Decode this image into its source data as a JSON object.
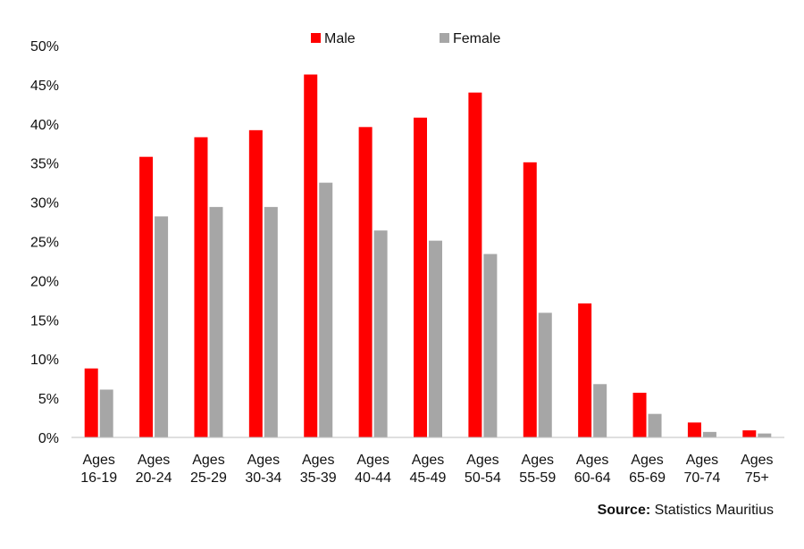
{
  "chart_data": {
    "type": "bar",
    "categories": [
      [
        "Ages",
        "16-19"
      ],
      [
        "Ages",
        "20-24"
      ],
      [
        "Ages",
        "25-29"
      ],
      [
        "Ages",
        "30-34"
      ],
      [
        "Ages",
        "35-39"
      ],
      [
        "Ages",
        "40-44"
      ],
      [
        "Ages",
        "45-49"
      ],
      [
        "Ages",
        "50-54"
      ],
      [
        "Ages",
        "55-59"
      ],
      [
        "Ages",
        "60-64"
      ],
      [
        "Ages",
        "65-69"
      ],
      [
        "Ages",
        "70-74"
      ],
      [
        "Ages",
        "75+"
      ]
    ],
    "series": [
      {
        "name": "Male",
        "color": "#ff0000",
        "values": [
          8.8,
          35.8,
          38.3,
          39.2,
          46.3,
          39.6,
          40.8,
          44.0,
          35.1,
          17.1,
          5.7,
          1.9,
          0.9
        ]
      },
      {
        "name": "Female",
        "color": "#a6a6a6",
        "values": [
          6.1,
          28.2,
          29.4,
          29.4,
          32.5,
          26.4,
          25.1,
          23.4,
          15.9,
          6.8,
          3.0,
          0.7,
          0.5
        ]
      }
    ],
    "yticks": [
      "0%",
      "5%",
      "10%",
      "15%",
      "20%",
      "25%",
      "30%",
      "35%",
      "40%",
      "45%",
      "50%"
    ],
    "ylim": [
      0,
      50
    ],
    "legend_position": "top-center",
    "grid": false
  },
  "source": {
    "label": "Source:",
    "text": "Statistics Mauritius"
  }
}
